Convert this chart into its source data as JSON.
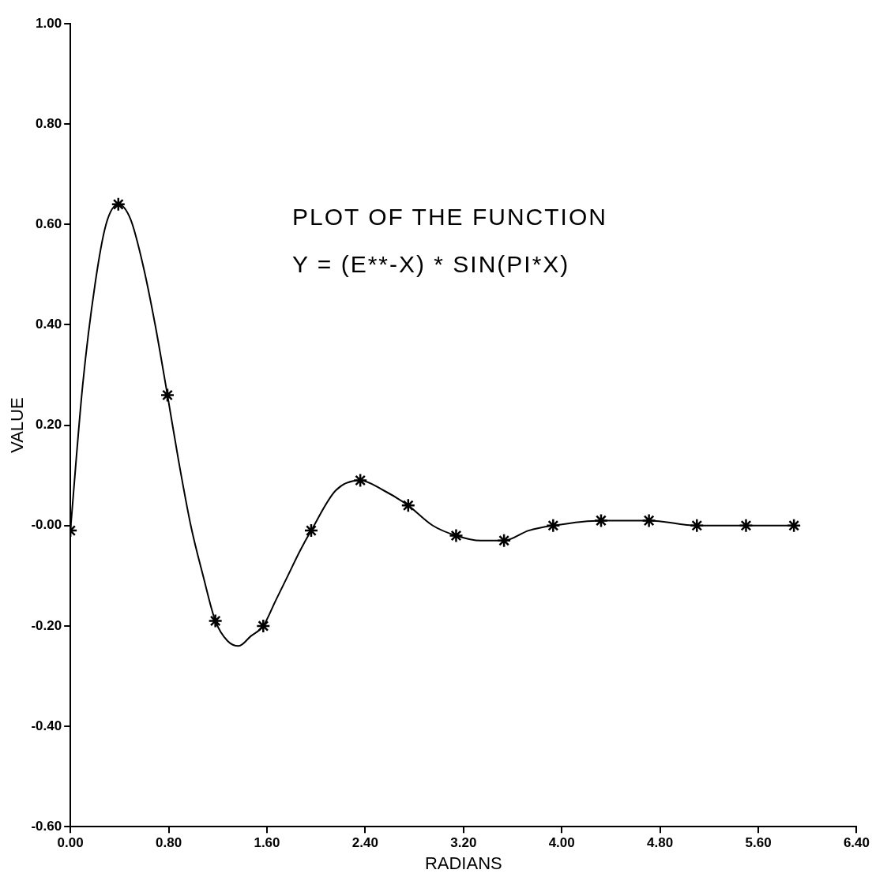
{
  "chart_data": {
    "type": "line",
    "title": "PLOT OF THE FUNCTION",
    "subtitle": "Y = (E**-X) * SIN(PI*X)",
    "xlabel": "RADIANS",
    "ylabel": "VALUE",
    "xlim": [
      0,
      6.4
    ],
    "xticks": [
      {
        "value": 0,
        "label": "0.00"
      },
      {
        "value": 0.8,
        "label": "0.80"
      },
      {
        "value": 1.6,
        "label": "1.60"
      },
      {
        "value": 2.4,
        "label": "2.40"
      },
      {
        "value": 3.2,
        "label": "3.20"
      },
      {
        "value": 4,
        "label": "4.00"
      },
      {
        "value": 4.8,
        "label": "4.80"
      },
      {
        "value": 5.6,
        "label": "5.60"
      },
      {
        "value": 6.4,
        "label": "6.40"
      }
    ],
    "ylim": [
      -0.6,
      1
    ],
    "yticks": [
      {
        "value": -0.6,
        "label": "-0.60"
      },
      {
        "value": -0.4,
        "label": "-0.40"
      },
      {
        "value": -0.2,
        "label": "-0.20"
      },
      {
        "value": 0,
        "label": "-0.00"
      },
      {
        "value": 0.2,
        "label": "0.20"
      },
      {
        "value": 0.4,
        "label": "0.40"
      },
      {
        "value": 0.6,
        "label": "0.60"
      },
      {
        "value": 0.8,
        "label": "0.80"
      },
      {
        "value": 1,
        "label": "1.00"
      }
    ],
    "grid": false,
    "legend": false,
    "series": [
      {
        "type": "line",
        "color": "#000000",
        "marker": "none",
        "line_style": "solid",
        "x": [
          0,
          0.1,
          0.2,
          0.29,
          0.39,
          0.49,
          0.59,
          0.69,
          0.79,
          0.88,
          0.98,
          1.08,
          1.18,
          1.28,
          1.37,
          1.47,
          1.57,
          1.67,
          1.77,
          1.87,
          1.96,
          2.16,
          2.36,
          2.55,
          2.75,
          2.95,
          3.14,
          3.34,
          3.53,
          3.73,
          3.93,
          4.32,
          4.71,
          5.1,
          5.5,
          5.89
        ],
        "values": [
          -0.01,
          0.28,
          0.48,
          0.6,
          0.64,
          0.61,
          0.52,
          0.4,
          0.26,
          0.13,
          0,
          -0.1,
          -0.19,
          -0.23,
          -0.24,
          -0.22,
          -0.2,
          -0.15,
          -0.1,
          -0.05,
          -0.01,
          0.07,
          0.09,
          0.07,
          0.04,
          0,
          -0.02,
          -0.03,
          -0.03,
          -0.01,
          0,
          0.01,
          0.01,
          0,
          0,
          0
        ]
      },
      {
        "type": "scatter",
        "color": "#000000",
        "marker": "cross",
        "x": [
          0,
          0.39,
          0.79,
          1.18,
          1.57,
          1.96,
          2.36,
          2.75,
          3.14,
          3.53,
          3.93,
          4.32,
          4.71,
          5.1,
          5.5,
          5.89
        ],
        "values": [
          -0.01,
          0.64,
          0.26,
          -0.19,
          -0.2,
          -0.01,
          0.09,
          0.04,
          -0.02,
          -0.03,
          0,
          0.01,
          0.01,
          0,
          0,
          0
        ]
      }
    ]
  }
}
